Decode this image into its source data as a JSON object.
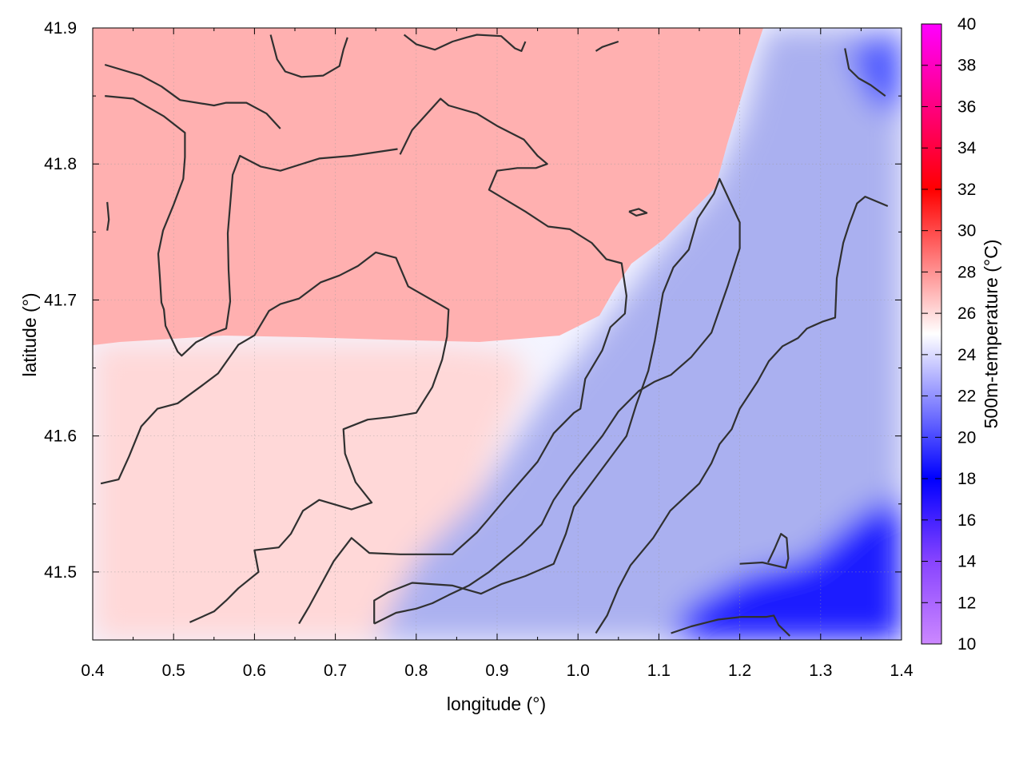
{
  "chart_data": {
    "type": "heatmap",
    "title": "",
    "xlabel": "longitude (°)",
    "ylabel": "latitude (°)",
    "colorbar_label": "500m-temperature (°C)",
    "xlim": [
      0.4,
      1.4
    ],
    "ylim": [
      41.45,
      41.9
    ],
    "x_ticks": [
      "0.4",
      "0.5",
      "0.6",
      "0.7",
      "0.8",
      "0.9",
      "1.0",
      "1.1",
      "1.2",
      "1.3",
      "1.4"
    ],
    "y_ticks": [
      "41.5",
      "41.6",
      "41.7",
      "41.8",
      "41.9"
    ],
    "colorbar_range": [
      10,
      40
    ],
    "colorbar_ticks": [
      "10",
      "12",
      "14",
      "16",
      "18",
      "20",
      "22",
      "24",
      "26",
      "28",
      "30",
      "32",
      "34",
      "36",
      "38",
      "40"
    ],
    "grid": true,
    "colormap_stops": [
      {
        "value": 10,
        "color": "#cc88ff"
      },
      {
        "value": 14,
        "color": "#8844ff"
      },
      {
        "value": 18,
        "color": "#0000ff"
      },
      {
        "value": 25,
        "color": "#ffffff"
      },
      {
        "value": 32,
        "color": "#ff0000"
      },
      {
        "value": 40,
        "color": "#ff00ff"
      }
    ],
    "temperature_regions": [
      {
        "name": "warm-north",
        "approx_temperature": 27,
        "color": "#ffb0b0"
      },
      {
        "name": "mild-southwest",
        "approx_temperature": 26,
        "color": "#ffd8d8"
      },
      {
        "name": "cool-east",
        "approx_temperature": 22,
        "color": "#aab0f0"
      },
      {
        "name": "cold-southeast",
        "approx_temperature": 18,
        "color": "#1a1aff"
      }
    ],
    "contours": [
      {
        "points": [
          [
            0.415,
            41.873
          ],
          [
            0.46,
            41.865
          ],
          [
            0.485,
            41.857
          ],
          [
            0.508,
            41.847
          ],
          [
            0.55,
            41.843
          ],
          [
            0.565,
            41.845
          ],
          [
            0.59,
            41.845
          ],
          [
            0.615,
            41.837
          ],
          [
            0.632,
            41.826
          ]
        ]
      },
      {
        "points": [
          [
            0.415,
            41.85
          ],
          [
            0.45,
            41.848
          ],
          [
            0.488,
            41.835
          ],
          [
            0.514,
            41.823
          ],
          [
            0.514,
            41.805
          ],
          [
            0.512,
            41.789
          ],
          [
            0.5,
            41.77
          ],
          [
            0.487,
            41.751
          ],
          [
            0.481,
            41.734
          ],
          [
            0.483,
            41.717
          ],
          [
            0.485,
            41.698
          ],
          [
            0.488,
            41.693
          ],
          [
            0.49,
            41.681
          ],
          [
            0.505,
            41.662
          ],
          [
            0.51,
            41.659
          ],
          [
            0.528,
            41.669
          ],
          [
            0.535,
            41.671
          ],
          [
            0.547,
            41.675
          ],
          [
            0.565,
            41.679
          ],
          [
            0.57,
            41.699
          ],
          [
            0.568,
            41.722
          ],
          [
            0.567,
            41.749
          ],
          [
            0.573,
            41.792
          ],
          [
            0.582,
            41.806
          ],
          [
            0.608,
            41.798
          ],
          [
            0.632,
            41.795
          ],
          [
            0.68,
            41.804
          ],
          [
            0.72,
            41.806
          ],
          [
            0.777,
            41.811
          ]
        ]
      },
      {
        "points": [
          [
            0.418,
            41.772
          ],
          [
            0.42,
            41.759
          ],
          [
            0.418,
            41.751
          ]
        ]
      },
      {
        "points": [
          [
            0.41,
            41.565
          ],
          [
            0.432,
            41.568
          ],
          [
            0.445,
            41.585
          ],
          [
            0.46,
            41.607
          ],
          [
            0.48,
            41.62
          ],
          [
            0.505,
            41.624
          ],
          [
            0.535,
            41.637
          ],
          [
            0.555,
            41.646
          ],
          [
            0.58,
            41.667
          ],
          [
            0.6,
            41.674
          ],
          [
            0.618,
            41.692
          ],
          [
            0.632,
            41.697
          ],
          [
            0.655,
            41.701
          ],
          [
            0.682,
            41.713
          ],
          [
            0.705,
            41.718
          ],
          [
            0.728,
            41.725
          ],
          [
            0.75,
            41.735
          ],
          [
            0.775,
            41.731
          ],
          [
            0.79,
            41.71
          ],
          [
            0.84,
            41.693
          ],
          [
            0.838,
            41.673
          ],
          [
            0.832,
            41.656
          ],
          [
            0.82,
            41.636
          ],
          [
            0.8,
            41.617
          ],
          [
            0.77,
            41.614
          ],
          [
            0.74,
            41.612
          ],
          [
            0.71,
            41.605
          ],
          [
            0.712,
            41.587
          ],
          [
            0.725,
            41.566
          ],
          [
            0.745,
            41.551
          ],
          [
            0.72,
            41.546
          ],
          [
            0.68,
            41.553
          ],
          [
            0.66,
            41.545
          ],
          [
            0.645,
            41.528
          ],
          [
            0.63,
            41.518
          ],
          [
            0.6,
            41.516
          ],
          [
            0.605,
            41.5
          ],
          [
            0.58,
            41.488
          ],
          [
            0.565,
            41.479
          ],
          [
            0.55,
            41.471
          ],
          [
            0.52,
            41.463
          ]
        ]
      },
      {
        "points": [
          [
            0.655,
            41.462
          ],
          [
            0.668,
            41.475
          ],
          [
            0.698,
            41.508
          ],
          [
            0.72,
            41.525
          ],
          [
            0.742,
            41.514
          ],
          [
            0.78,
            41.513
          ],
          [
            0.82,
            41.513
          ],
          [
            0.845,
            41.513
          ],
          [
            0.875,
            41.529
          ],
          [
            0.888,
            41.538
          ],
          [
            0.912,
            41.555
          ],
          [
            0.95,
            41.581
          ],
          [
            0.97,
            41.602
          ],
          [
            0.995,
            41.617
          ],
          [
            1.003,
            41.62
          ],
          [
            1.009,
            41.642
          ],
          [
            1.03,
            41.663
          ],
          [
            1.04,
            41.68
          ],
          [
            1.058,
            41.69
          ],
          [
            1.06,
            41.703
          ],
          [
            1.054,
            41.727
          ],
          [
            1.035,
            41.73
          ],
          [
            1.017,
            41.742
          ],
          [
            0.99,
            41.752
          ],
          [
            0.963,
            41.754
          ],
          [
            0.935,
            41.765
          ],
          [
            0.89,
            41.781
          ],
          [
            0.9,
            41.795
          ],
          [
            0.925,
            41.797
          ],
          [
            0.948,
            41.797
          ],
          [
            0.962,
            41.8
          ],
          [
            0.95,
            41.806
          ],
          [
            0.933,
            41.818
          ],
          [
            0.9,
            41.828
          ],
          [
            0.875,
            41.837
          ],
          [
            0.84,
            41.843
          ],
          [
            0.83,
            41.848
          ],
          [
            0.795,
            41.825
          ],
          [
            0.78,
            41.807
          ]
        ]
      },
      {
        "points": [
          [
            0.748,
            41.462
          ],
          [
            0.748,
            41.479
          ],
          [
            0.765,
            41.485
          ],
          [
            0.795,
            41.492
          ],
          [
            0.845,
            41.49
          ],
          [
            0.88,
            41.484
          ],
          [
            0.905,
            41.491
          ],
          [
            0.935,
            41.497
          ],
          [
            0.97,
            41.506
          ],
          [
            0.985,
            41.528
          ],
          [
            0.995,
            41.548
          ],
          [
            1.01,
            41.56
          ],
          [
            1.03,
            41.576
          ],
          [
            1.06,
            41.6
          ],
          [
            1.072,
            41.623
          ],
          [
            1.087,
            41.648
          ],
          [
            1.095,
            41.67
          ],
          [
            1.105,
            41.705
          ],
          [
            1.118,
            41.724
          ],
          [
            1.137,
            41.737
          ],
          [
            1.148,
            41.76
          ],
          [
            1.168,
            41.778
          ],
          [
            1.175,
            41.789
          ],
          [
            1.2,
            41.757
          ],
          [
            1.2,
            41.738
          ],
          [
            1.185,
            41.71
          ],
          [
            1.165,
            41.676
          ],
          [
            1.14,
            41.658
          ],
          [
            1.115,
            41.645
          ],
          [
            1.095,
            41.64
          ],
          [
            1.075,
            41.633
          ],
          [
            1.05,
            41.618
          ],
          [
            1.03,
            41.6
          ],
          [
            1.01,
            41.585
          ],
          [
            0.99,
            41.57
          ],
          [
            0.97,
            41.553
          ],
          [
            0.955,
            41.535
          ],
          [
            0.93,
            41.52
          ],
          [
            0.91,
            41.51
          ],
          [
            0.89,
            41.5
          ],
          [
            0.865,
            41.49
          ],
          [
            0.84,
            41.483
          ],
          [
            0.82,
            41.477
          ],
          [
            0.8,
            41.473
          ],
          [
            0.775,
            41.47
          ],
          [
            0.748,
            41.462
          ]
        ]
      },
      {
        "points": [
          [
            1.022,
            41.455
          ],
          [
            1.036,
            41.468
          ],
          [
            1.05,
            41.488
          ],
          [
            1.065,
            41.505
          ],
          [
            1.093,
            41.525
          ],
          [
            1.114,
            41.545
          ],
          [
            1.15,
            41.565
          ],
          [
            1.165,
            41.58
          ],
          [
            1.175,
            41.594
          ],
          [
            1.19,
            41.605
          ],
          [
            1.2,
            41.62
          ],
          [
            1.222,
            41.64
          ],
          [
            1.236,
            41.655
          ],
          [
            1.253,
            41.666
          ],
          [
            1.272,
            41.672
          ],
          [
            1.283,
            41.679
          ],
          [
            1.302,
            41.684
          ],
          [
            1.318,
            41.687
          ],
          [
            1.32,
            41.716
          ],
          [
            1.328,
            41.742
          ],
          [
            1.335,
            41.755
          ],
          [
            1.345,
            41.771
          ],
          [
            1.355,
            41.776
          ],
          [
            1.383,
            41.769
          ]
        ]
      },
      {
        "points": [
          [
            1.115,
            41.455
          ],
          [
            1.14,
            41.46
          ],
          [
            1.173,
            41.465
          ],
          [
            1.202,
            41.467
          ],
          [
            1.233,
            41.467
          ],
          [
            1.242,
            41.468
          ],
          [
            1.248,
            41.461
          ],
          [
            1.262,
            41.453
          ]
        ]
      },
      {
        "points": [
          [
            1.2,
            41.506
          ],
          [
            1.228,
            41.507
          ],
          [
            1.257,
            41.503
          ],
          [
            1.26,
            41.51
          ],
          [
            1.258,
            41.525
          ],
          [
            1.251,
            41.528
          ],
          [
            1.243,
            41.517
          ],
          [
            1.235,
            41.507
          ]
        ]
      },
      {
        "points": [
          [
            1.33,
            41.885
          ],
          [
            1.335,
            41.87
          ],
          [
            1.347,
            41.863
          ],
          [
            1.362,
            41.858
          ],
          [
            1.38,
            41.85
          ]
        ]
      },
      {
        "points": [
          [
            0.62,
            41.895
          ],
          [
            0.628,
            41.877
          ],
          [
            0.638,
            41.868
          ],
          [
            0.658,
            41.864
          ],
          [
            0.685,
            41.865
          ],
          [
            0.705,
            41.872
          ],
          [
            0.71,
            41.884
          ],
          [
            0.715,
            41.893
          ]
        ]
      },
      {
        "points": [
          [
            0.785,
            41.895
          ],
          [
            0.8,
            41.888
          ],
          [
            0.823,
            41.884
          ],
          [
            0.845,
            41.89
          ],
          [
            0.862,
            41.893
          ],
          [
            0.875,
            41.895
          ],
          [
            0.905,
            41.894
          ],
          [
            0.922,
            41.885
          ],
          [
            0.93,
            41.883
          ],
          [
            0.935,
            41.89
          ]
        ]
      },
      {
        "points": [
          [
            1.022,
            41.883
          ],
          [
            1.03,
            41.886
          ],
          [
            1.05,
            41.89
          ]
        ]
      },
      {
        "points": [
          [
            1.063,
            41.765
          ],
          [
            1.075,
            41.767
          ],
          [
            1.085,
            41.764
          ],
          [
            1.072,
            41.762
          ],
          [
            1.063,
            41.765
          ]
        ]
      }
    ]
  }
}
